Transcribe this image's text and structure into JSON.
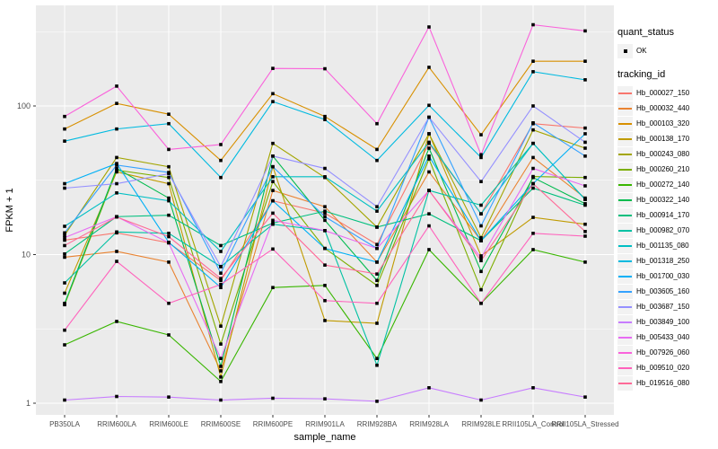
{
  "figure": {
    "panel_bg": "#EBEBEB",
    "grid_color": "#FFFFFF",
    "tick_text_color": "#4D4D4D",
    "point_color": "#000000",
    "legend_key_bg": "#F2F2F2"
  },
  "legend": {
    "quant_status_title": "quant_status",
    "quant_status_items": [
      {
        "label": "OK",
        "marker": "black-point"
      }
    ],
    "tracking_id_title": "tracking_id"
  },
  "chart_data": {
    "type": "line",
    "title": "",
    "xlabel": "sample_name",
    "ylabel": "FPKM + 1",
    "y_scale": "log10",
    "y_ticks": [
      1,
      10,
      100
    ],
    "y_minor": [
      3.162,
      31.62,
      316.2
    ],
    "ylim": [
      0.85,
      480
    ],
    "grid": true,
    "legend_position": "right",
    "categories": [
      "PB350LA",
      "RRIM600LA",
      "RRIM600LE",
      "RRIM600SE",
      "RRIM600PE",
      "RRIM901LA",
      "RRIM928BA",
      "RRIM928LA",
      "RRIM928LE",
      "RRII105LA_Control",
      "RRII105LA_Stressed"
    ],
    "series": [
      {
        "name": "Hb_000027_150",
        "color": "#F8766D",
        "values": [
          12.5,
          14.0,
          12.0,
          6.7,
          23,
          19,
          11.7,
          56,
          18.8,
          76,
          71
        ]
      },
      {
        "name": "Hb_000032_440",
        "color": "#EA8331",
        "values": [
          9.6,
          10.5,
          8.9,
          1.65,
          27,
          21,
          8.9,
          36,
          12.4,
          45,
          24
        ]
      },
      {
        "name": "Hb_000103_320",
        "color": "#D89000",
        "values": [
          70,
          104,
          88,
          43,
          121,
          85,
          51,
          182,
          64,
          200,
          200
        ]
      },
      {
        "name": "Hb_000138_170",
        "color": "#C09B00",
        "values": [
          5.5,
          36,
          30,
          1.5,
          39,
          3.6,
          3.45,
          65,
          9.8,
          17.8,
          16
        ]
      },
      {
        "name": "Hb_000243_080",
        "color": "#A3A500",
        "values": [
          13.5,
          45,
          39,
          3.3,
          56,
          33,
          15.3,
          65,
          13.0,
          69,
          52
        ]
      },
      {
        "name": "Hb_000260_210",
        "color": "#7CAE00",
        "values": [
          4.6,
          37,
          33,
          2.5,
          31,
          11,
          6.2,
          44,
          5.8,
          33.5,
          33
        ]
      },
      {
        "name": "Hb_000272_140",
        "color": "#39B600",
        "values": [
          2.47,
          3.55,
          2.88,
          1.4,
          6.0,
          6.2,
          2.0,
          10.8,
          4.7,
          10.8,
          8.9
        ]
      },
      {
        "name": "Hb_000322_140",
        "color": "#00BB4E",
        "values": [
          4.7,
          38,
          24,
          1.77,
          46,
          17,
          6.7,
          52,
          7.7,
          33,
          22
        ]
      },
      {
        "name": "Hb_000914_170",
        "color": "#00BF7D",
        "values": [
          10.1,
          18,
          18.4,
          11.5,
          16.3,
          19.6,
          15.3,
          18.8,
          12.4,
          28,
          21.5
        ]
      },
      {
        "name": "Hb_000982_070",
        "color": "#00C1A3",
        "values": [
          6.45,
          14.2,
          13.9,
          8.3,
          16,
          14.5,
          1.8,
          27,
          21.5,
          56,
          23.5
        ]
      },
      {
        "name": "Hb_001135_080",
        "color": "#00BFC4",
        "values": [
          15.5,
          26,
          23,
          10.5,
          33.4,
          33.4,
          19.6,
          57,
          18.8,
          56,
          23.5
        ]
      },
      {
        "name": "Hb_001318_250",
        "color": "#00BAE0",
        "values": [
          58,
          70,
          76,
          33,
          107,
          81,
          43,
          101,
          45,
          170,
          150
        ]
      },
      {
        "name": "Hb_001700_030",
        "color": "#00B0F6",
        "values": [
          30,
          41,
          12.1,
          6.0,
          23,
          11,
          8.9,
          46,
          12.4,
          30,
          65
        ]
      },
      {
        "name": "Hb_003605_160",
        "color": "#35A2FF",
        "values": [
          14,
          40,
          35.7,
          7.5,
          39,
          18,
          11,
          84,
          15.6,
          77,
          46
        ]
      },
      {
        "name": "Hb_003687_150",
        "color": "#9590FF",
        "values": [
          28,
          30,
          35,
          8.3,
          46,
          38,
          21,
          84,
          31,
          100,
          57
        ]
      },
      {
        "name": "Hb_003849_100",
        "color": "#C77CFF",
        "values": [
          1.05,
          1.11,
          1.1,
          1.05,
          1.08,
          1.07,
          1.03,
          1.27,
          1.05,
          1.27,
          1.1
        ]
      },
      {
        "name": "Hb_005433_040",
        "color": "#E76BF3",
        "values": [
          13,
          18,
          12,
          2.0,
          17,
          14.5,
          11,
          27,
          9.5,
          38,
          29
        ]
      },
      {
        "name": "Hb_007926_060",
        "color": "#FA62DB",
        "values": [
          85,
          136,
          51,
          55,
          179,
          178,
          76,
          340,
          47,
          352,
          320
        ]
      },
      {
        "name": "Hb_009510_020",
        "color": "#FF62BC",
        "values": [
          3.1,
          9.0,
          4.7,
          6.3,
          10.9,
          4.9,
          4.7,
          15.6,
          4.7,
          13.9,
          13.3
        ]
      },
      {
        "name": "Hb_019516_080",
        "color": "#FF6A98",
        "values": [
          11.5,
          17.9,
          13.2,
          6.9,
          19,
          8.5,
          7.4,
          27,
          9.1,
          30,
          14.3
        ]
      }
    ]
  }
}
